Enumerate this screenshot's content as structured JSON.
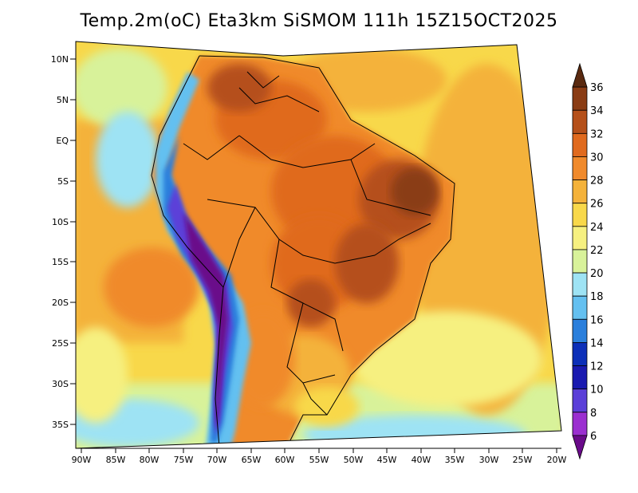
{
  "title": "Temp.2m(oC) Eta3km SiSMOM 111h 15Z15OCT2025",
  "map": {
    "lat_labels": [
      "10N",
      "5N",
      "EQ",
      "5S",
      "10S",
      "15S",
      "20S",
      "25S",
      "30S",
      "35S"
    ],
    "lon_labels": [
      "90W",
      "85W",
      "80W",
      "75W",
      "70W",
      "65W",
      "60W",
      "55W",
      "50W",
      "45W",
      "40W",
      "35W",
      "30W",
      "25W",
      "20W"
    ]
  },
  "colorbar": {
    "labels": [
      "36",
      "34",
      "32",
      "30",
      "28",
      "26",
      "24",
      "22",
      "20",
      "18",
      "16",
      "14",
      "12",
      "10",
      "8",
      "6"
    ],
    "colors": [
      "#5a2a10",
      "#8a3c14",
      "#b5501a",
      "#e06a1e",
      "#f08a2c",
      "#f4b23a",
      "#f8d84a",
      "#f6f080",
      "#d8f29a",
      "#9ee3f4",
      "#64c0f0",
      "#2a7fdc",
      "#0c2fb8",
      "#1a1ab0",
      "#5b3fd8",
      "#9b2fd0",
      "#6a0a8a"
    ]
  }
}
